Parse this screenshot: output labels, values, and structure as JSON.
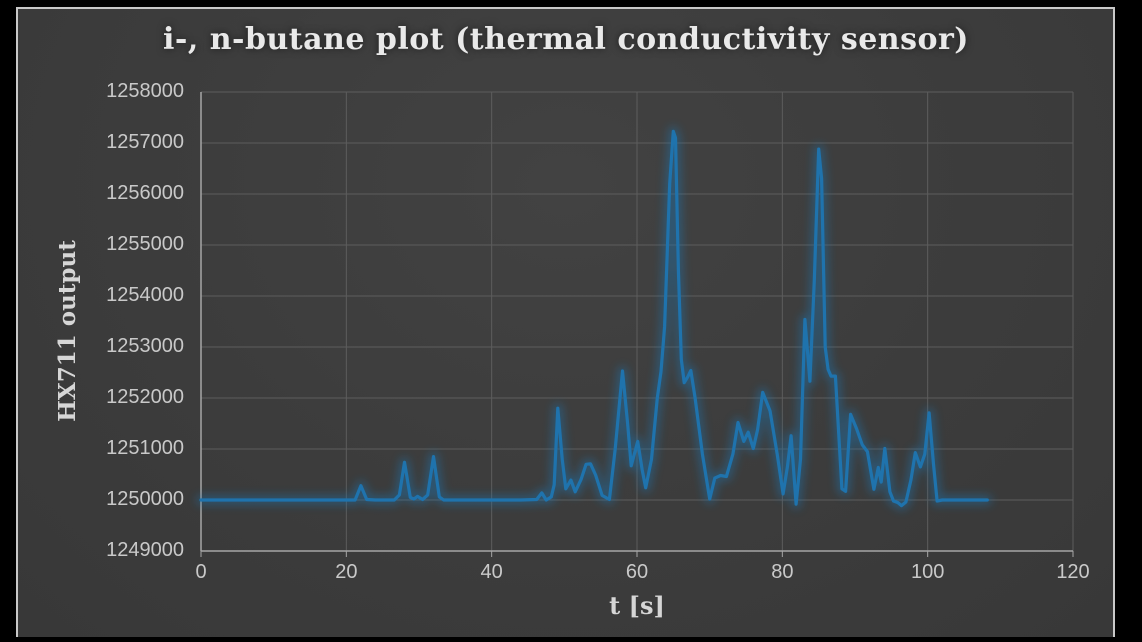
{
  "window": {
    "letterbox_color": "#000000",
    "background_color": "#3c3c3c",
    "frame_border_color": "#c9c9c9"
  },
  "chart": {
    "title": "i-, n-butane plot (thermal conductivity sensor)",
    "xlabel": "t [s]",
    "ylabel": "HX711 output",
    "title_color": "#e9e9e9",
    "axis_title_color": "#d6d6d6",
    "tick_label_color": "#c9c9c9",
    "grid_color": "#5d5d5d",
    "axis_line_color": "#a6a6a6",
    "line_color": "#1f73ad",
    "line_glow_color": "#1f73ad"
  },
  "chart_data": {
    "type": "line",
    "title": "i-, n-butane plot (thermal conductivity sensor)",
    "xlabel": "t [s]",
    "ylabel": "HX711 output",
    "xlim": [
      0,
      120
    ],
    "ylim": [
      1249000,
      1258000
    ],
    "x_ticks": [
      0,
      20,
      40,
      60,
      80,
      100,
      120
    ],
    "y_ticks": [
      1249000,
      1250000,
      1251000,
      1252000,
      1253000,
      1254000,
      1255000,
      1256000,
      1257000,
      1258000
    ],
    "grid": true,
    "legend": "none",
    "series": [
      {
        "name": "HX711 output",
        "x": [
          0,
          5,
          10,
          15,
          20,
          21.2,
          22,
          22.8,
          24,
          26.6,
          27.3,
          28,
          28.8,
          29.3,
          29.8,
          30.5,
          31.2,
          32,
          32.8,
          33.4,
          36,
          40,
          44,
          46.2,
          46.9,
          47.5,
          48.2,
          48.6,
          49.1,
          49.7,
          50.2,
          50.9,
          51.5,
          52.3,
          53.0,
          53.6,
          54.3,
          55.2,
          56.2,
          57.0,
          58.0,
          58.7,
          59.2,
          60.1,
          60.7,
          61.2,
          62.0,
          62.8,
          63.3,
          63.8,
          64.5,
          65.0,
          65.3,
          65.7,
          66.1,
          66.5,
          67.0,
          67.4,
          68.0,
          69.0,
          70.0,
          70.7,
          71.5,
          72.3,
          73.2,
          73.9,
          74.7,
          75.3,
          76.0,
          76.6,
          77.3,
          78.3,
          79.3,
          80.1,
          80.7,
          81.2,
          81.9,
          82.5,
          83.1,
          83.8,
          84.4,
          85.0,
          85.4,
          85.9,
          86.3,
          86.7,
          87.3,
          88.2,
          88.7,
          89.4,
          90.2,
          91.0,
          91.7,
          92.6,
          93.2,
          93.6,
          94.1,
          94.8,
          95.3,
          95.9,
          96.4,
          97.0,
          97.7,
          98.3,
          99.0,
          99.6,
          100.2,
          100.8,
          101.3,
          102.0,
          104.0,
          106.0,
          108.2
        ],
        "y": [
          1250000,
          1250000,
          1250000,
          1250000,
          1250000,
          1250000,
          1250280,
          1250010,
          1250000,
          1250000,
          1250100,
          1250740,
          1250050,
          1250020,
          1250070,
          1250010,
          1250100,
          1250850,
          1250060,
          1250000,
          1250000,
          1250000,
          1250000,
          1250010,
          1250140,
          1250000,
          1250060,
          1250300,
          1251800,
          1250800,
          1250220,
          1250390,
          1250160,
          1250400,
          1250700,
          1250710,
          1250490,
          1250090,
          1250010,
          1251000,
          1252530,
          1251500,
          1250670,
          1251150,
          1250600,
          1250240,
          1250800,
          1252000,
          1252520,
          1253400,
          1256200,
          1257230,
          1257100,
          1254500,
          1252760,
          1252300,
          1252420,
          1252540,
          1252000,
          1250900,
          1250020,
          1250430,
          1250480,
          1250460,
          1250900,
          1251520,
          1251150,
          1251330,
          1251010,
          1251380,
          1252110,
          1251750,
          1250900,
          1250120,
          1250650,
          1251260,
          1249920,
          1250800,
          1253540,
          1252330,
          1254300,
          1256880,
          1256300,
          1253000,
          1252560,
          1252430,
          1252430,
          1250220,
          1250170,
          1251680,
          1251400,
          1251080,
          1250950,
          1250210,
          1250640,
          1250350,
          1251010,
          1250160,
          1249980,
          1249950,
          1249890,
          1249960,
          1250400,
          1250930,
          1250650,
          1250900,
          1251710,
          1250700,
          1249980,
          1250000,
          1250000,
          1250000,
          1250000
        ]
      }
    ]
  }
}
